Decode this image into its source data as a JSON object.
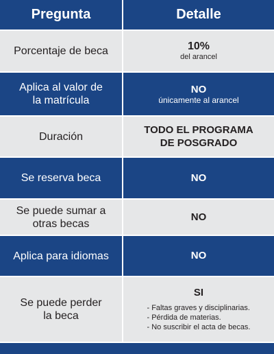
{
  "header": {
    "question": "Pregunta",
    "detail": "Detalle"
  },
  "rows": [
    {
      "question": "Porcentaje de beca",
      "answer": "10%",
      "note": "del arancel"
    },
    {
      "question": "Aplica al valor de\nla matrícula",
      "answer": "NO",
      "note": "únicamente al arancel"
    },
    {
      "question": "Duración",
      "answer": "TODO EL PROGRAMA\nDE POSGRADO"
    },
    {
      "question": "Se reserva beca",
      "answer": "NO"
    },
    {
      "question": "Se puede sumar a\notras becas",
      "answer": "NO"
    },
    {
      "question": "Aplica para idiomas",
      "answer": "NO"
    },
    {
      "question": "Se puede perder\nla beca",
      "answer": "SI",
      "reasons": [
        "- Faltas graves y disciplinarias.",
        "- Pérdida de materias.",
        "- No suscribir el acta de becas."
      ]
    }
  ],
  "colors": {
    "blue": "#1b4585",
    "gray": "#e6e7e8"
  }
}
